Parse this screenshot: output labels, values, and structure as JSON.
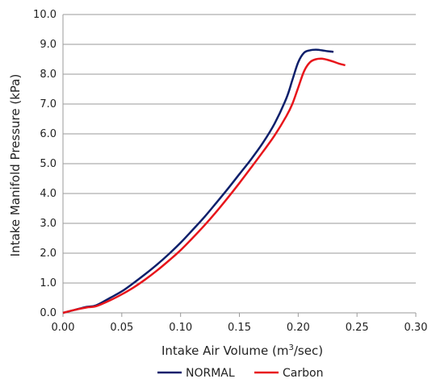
{
  "chart_data": {
    "type": "line",
    "xlabel": "Intake Air Volume (m",
    "xlabel_sup": "3",
    "xlabel_suffix": "/sec)",
    "ylabel": "Intake Manifold Pressure (kPa)",
    "xlim": [
      0,
      0.3
    ],
    "ylim": [
      0,
      10
    ],
    "x_ticks": [
      "0.00",
      "0.05",
      "0.10",
      "0.15",
      "0.20",
      "0.25",
      "0.30"
    ],
    "y_ticks": [
      "0.0",
      "1.0",
      "2.0",
      "3.0",
      "4.0",
      "5.0",
      "6.0",
      "7.0",
      "8.0",
      "9.0",
      "10.0"
    ],
    "grid": true,
    "legend_position": "bottom",
    "series": [
      {
        "name": "NORMAL",
        "color": "#0d1f6b",
        "x": [
          0,
          0.01,
          0.02,
          0.028,
          0.04,
          0.05,
          0.06,
          0.07,
          0.08,
          0.09,
          0.1,
          0.11,
          0.12,
          0.13,
          0.14,
          0.15,
          0.16,
          0.17,
          0.18,
          0.19,
          0.195,
          0.2,
          0.205,
          0.21,
          0.215,
          0.22,
          0.225,
          0.23
        ],
        "y": [
          0,
          0.1,
          0.2,
          0.25,
          0.5,
          0.72,
          1.0,
          1.3,
          1.62,
          1.97,
          2.35,
          2.77,
          3.2,
          3.67,
          4.15,
          4.65,
          5.15,
          5.7,
          6.35,
          7.2,
          7.8,
          8.4,
          8.72,
          8.8,
          8.82,
          8.8,
          8.77,
          8.75
        ]
      },
      {
        "name": "Carbon",
        "color": "#e8151b",
        "x": [
          0,
          0.01,
          0.02,
          0.028,
          0.04,
          0.05,
          0.06,
          0.07,
          0.08,
          0.09,
          0.1,
          0.11,
          0.12,
          0.13,
          0.14,
          0.15,
          0.16,
          0.17,
          0.18,
          0.19,
          0.195,
          0.2,
          0.205,
          0.21,
          0.215,
          0.22,
          0.225,
          0.23,
          0.235,
          0.24
        ],
        "y": [
          0,
          0.1,
          0.18,
          0.22,
          0.42,
          0.62,
          0.85,
          1.12,
          1.42,
          1.75,
          2.1,
          2.5,
          2.92,
          3.37,
          3.85,
          4.35,
          4.87,
          5.4,
          5.95,
          6.6,
          7.0,
          7.55,
          8.1,
          8.4,
          8.5,
          8.52,
          8.48,
          8.42,
          8.35,
          8.3
        ]
      }
    ]
  }
}
